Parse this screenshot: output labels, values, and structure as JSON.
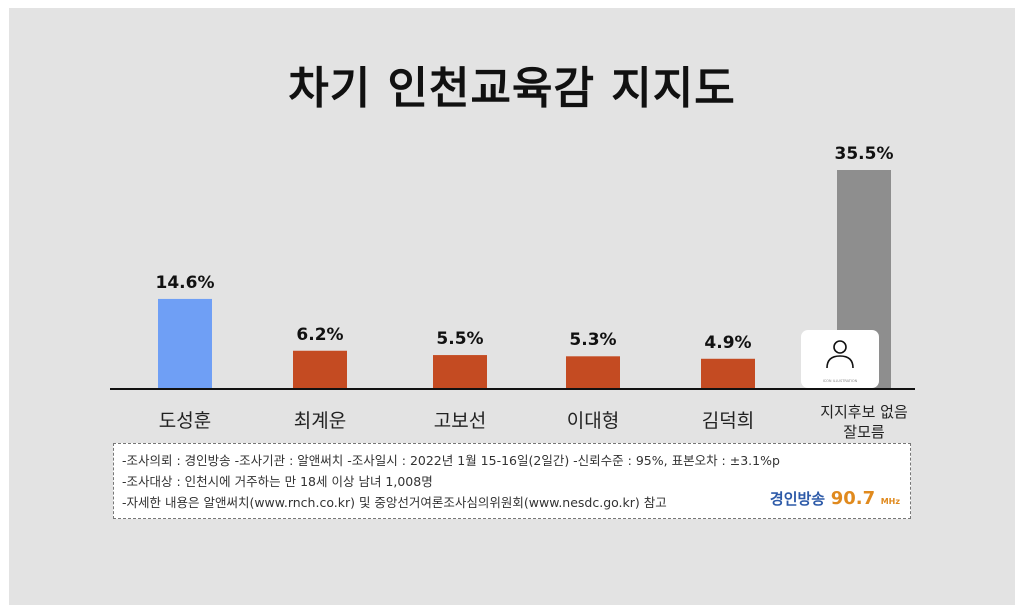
{
  "title": "차기 인천교육감 지지도",
  "chart_data": {
    "type": "bar",
    "categories": [
      "도성훈",
      "최계운",
      "고보선",
      "이대형",
      "김덕희",
      "지지후보 없음 잘모름"
    ],
    "values": [
      14.6,
      6.2,
      5.5,
      5.3,
      4.9,
      35.5
    ],
    "value_labels": [
      "14.6%",
      "6.2%",
      "5.5%",
      "5.3%",
      "4.9%",
      "35.5%"
    ],
    "colors": [
      "#6f9ff5",
      "#c44b22",
      "#c44b22",
      "#c44b22",
      "#c44b22",
      "#8e8e8e"
    ],
    "ylim": [
      0,
      40
    ],
    "category_labels": [
      {
        "lines": [
          "도성훈"
        ]
      },
      {
        "lines": [
          "최계운"
        ]
      },
      {
        "lines": [
          "고보선"
        ]
      },
      {
        "lines": [
          "이대형"
        ]
      },
      {
        "lines": [
          "김덕희"
        ]
      },
      {
        "lines": [
          "지지후보 없음",
          "잘모름"
        ]
      }
    ],
    "grid": false,
    "legend": "none"
  },
  "illustration": {
    "icon": "person-icon",
    "caption": "ICON ILLUSTRATION"
  },
  "notes": [
    "-조사의뢰 : 경인방송  -조사기관 : 알앤써치  -조사일시 : 2022년 1월 15-16일(2일간) -신뢰수준 : 95%, 표본오차 : ±3.1%p",
    "-조사대상 : 인천시에 거주하는 만 18세 이상 남녀 1,008명",
    "-자세한 내용은 알앤써치(www.rnch.co.kr) 및 중앙선거여론조사심의위원회(www.nesdc.go.kr) 참고"
  ],
  "logo": {
    "name": "경인방송",
    "freq": "90.7",
    "unit": "MHz"
  }
}
